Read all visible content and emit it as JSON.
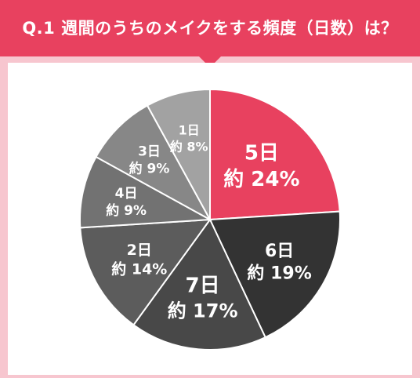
{
  "header": {
    "title": "Q.1 週間のうちのメイクをする頻度（日数）は？"
  },
  "colors": {
    "accent": "#e8415f",
    "background": "#f7c6cf",
    "panel": "#ffffff"
  },
  "chart_data": {
    "type": "pie",
    "start_angle_deg": 0,
    "direction": "clockwise",
    "slices": [
      {
        "label": "5日",
        "value_text": "約 24%",
        "value": 24,
        "color": "#e8415f"
      },
      {
        "label": "6日",
        "value_text": "約 19%",
        "value": 19,
        "color": "#333333"
      },
      {
        "label": "7日",
        "value_text": "約 17%",
        "value": 17,
        "color": "#484848"
      },
      {
        "label": "2日",
        "value_text": "約 14%",
        "value": 14,
        "color": "#5c5c5c"
      },
      {
        "label": "4日",
        "value_text": "約 9%",
        "value": 9,
        "color": "#727272"
      },
      {
        "label": "3日",
        "value_text": "約 9%",
        "value": 9,
        "color": "#878787"
      },
      {
        "label": "1日",
        "value_text": "約 8%",
        "value": 8,
        "color": "#a2a2a2"
      }
    ]
  }
}
